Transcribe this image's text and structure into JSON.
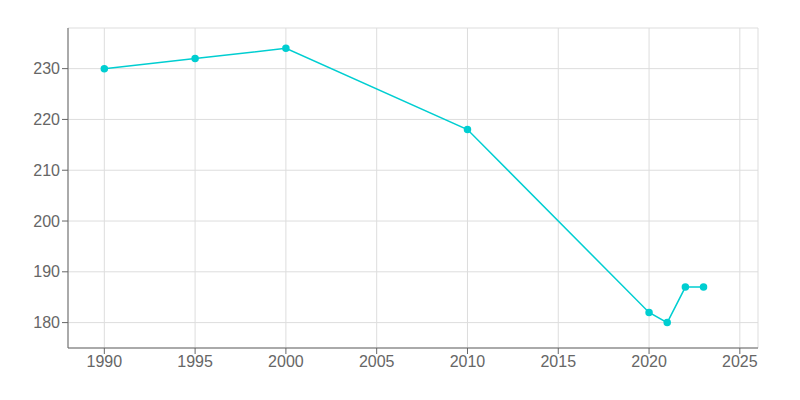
{
  "chart_data": {
    "type": "line",
    "x": [
      1990,
      1995,
      2000,
      2010,
      2020,
      2021,
      2022,
      2023
    ],
    "values": [
      230,
      232,
      234,
      218,
      182,
      180,
      187,
      187
    ],
    "color": "#00CED1",
    "marker": "circle",
    "xlim": [
      1988,
      2026
    ],
    "ylim": [
      175,
      238
    ],
    "xticks": [
      1990,
      1995,
      2000,
      2005,
      2010,
      2015,
      2020,
      2025
    ],
    "yticks": [
      180,
      190,
      200,
      210,
      220,
      230
    ],
    "grid": true
  }
}
